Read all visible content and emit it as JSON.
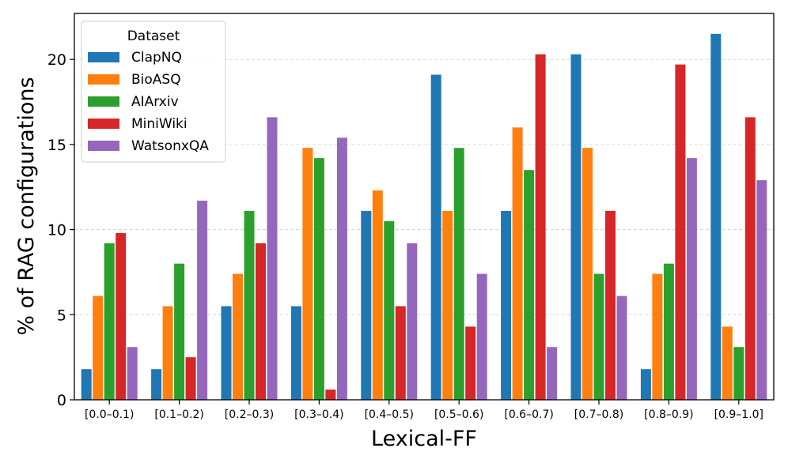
{
  "chart_data": {
    "type": "bar",
    "title": "",
    "xlabel": "Lexical-FF",
    "ylabel": "% of RAG configurations",
    "ylim": [
      0,
      22.7
    ],
    "yticks": [
      0,
      5,
      10,
      15,
      20
    ],
    "grid": "y-dashed",
    "legend_title": "Dataset",
    "legend_position": "top-left",
    "categories": [
      "[0.0–0.1)",
      "[0.1–0.2)",
      "[0.2–0.3)",
      "[0.3–0.4)",
      "[0.4–0.5)",
      "[0.5–0.6)",
      "[0.6–0.7)",
      "[0.7–0.8)",
      "[0.8–0.9)",
      "[0.9–1.0]"
    ],
    "series": [
      {
        "name": "ClapNQ",
        "color": "#1f77b4",
        "values": [
          1.8,
          1.8,
          5.5,
          5.5,
          11.1,
          19.1,
          11.1,
          20.3,
          1.8,
          21.5
        ]
      },
      {
        "name": "BioASQ",
        "color": "#ff7f0e",
        "values": [
          6.1,
          5.5,
          7.4,
          14.8,
          12.3,
          11.1,
          16.0,
          14.8,
          7.4,
          4.3
        ]
      },
      {
        "name": "AIArxiv",
        "color": "#2ca02c",
        "values": [
          9.2,
          8.0,
          11.1,
          14.2,
          10.5,
          14.8,
          13.5,
          7.4,
          8.0,
          3.1
        ]
      },
      {
        "name": "MiniWiki",
        "color": "#d62728",
        "values": [
          9.8,
          2.5,
          9.2,
          0.6,
          5.5,
          4.3,
          20.3,
          11.1,
          19.7,
          16.6
        ]
      },
      {
        "name": "WatsonxQA",
        "color": "#9467bd",
        "values": [
          3.1,
          11.7,
          16.6,
          15.4,
          9.2,
          7.4,
          3.1,
          6.1,
          14.2,
          12.9
        ]
      }
    ]
  }
}
